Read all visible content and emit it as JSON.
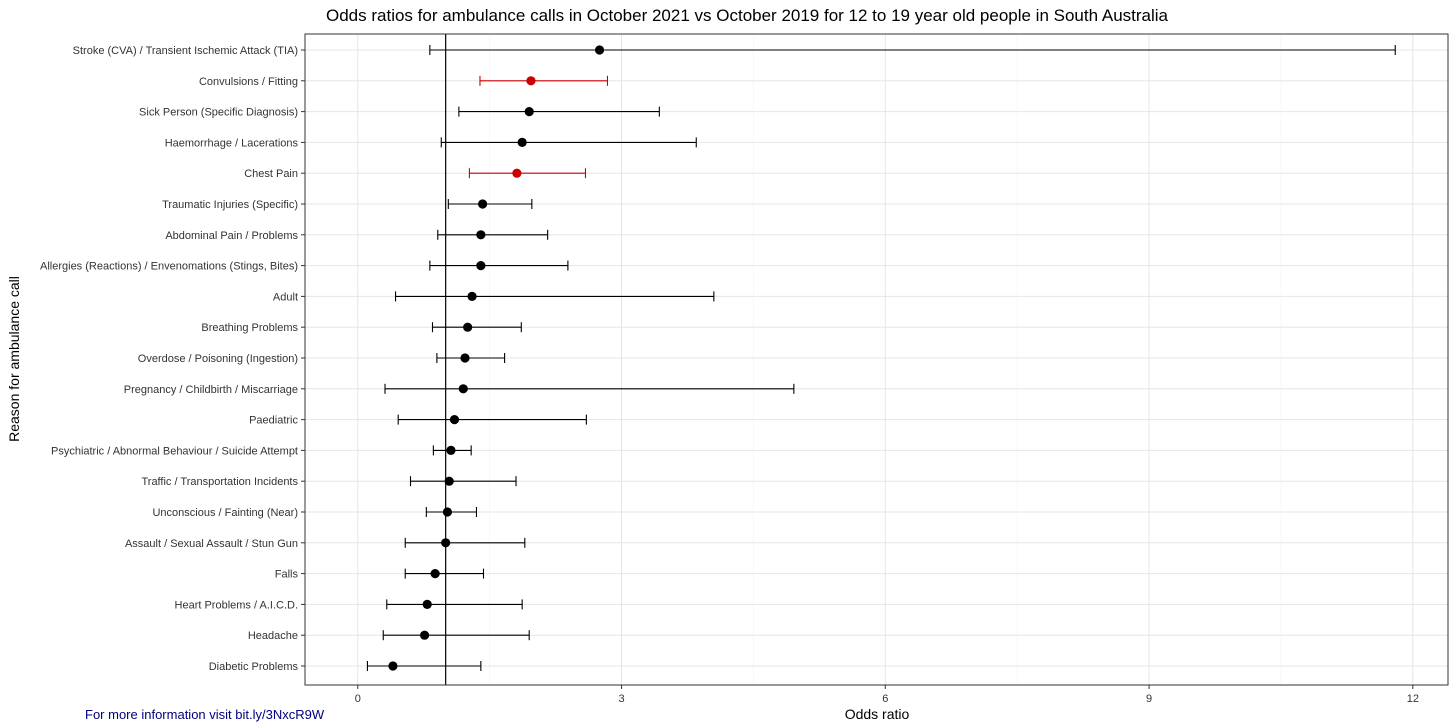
{
  "chart_data": {
    "type": "scatter",
    "title": "Odds ratios for ambulance calls in October 2021 vs October 2019 for 12 to 19 year old people in South Australia",
    "xlabel": "Odds ratio",
    "ylabel": "Reason for ambulance call",
    "xlim": [
      -0.6,
      12.4
    ],
    "x_ticks": [
      0,
      3,
      6,
      9,
      12
    ],
    "x_tick_labels": [
      "0",
      "3",
      "6",
      "9",
      "12"
    ],
    "reference_line_x": 1,
    "grid": true,
    "legend": "none",
    "colors": {
      "normal": "#000000",
      "highlight": "#cc0000"
    },
    "points": [
      {
        "label": "Stroke (CVA) / Transient Ischemic Attack (TIA)",
        "or": 2.75,
        "lower": 0.82,
        "upper": 11.8,
        "highlight": false
      },
      {
        "label": "Convulsions / Fitting",
        "or": 1.97,
        "lower": 1.39,
        "upper": 2.84,
        "highlight": true
      },
      {
        "label": "Sick Person (Specific Diagnosis)",
        "or": 1.95,
        "lower": 1.15,
        "upper": 3.43,
        "highlight": false
      },
      {
        "label": "Haemorrhage / Lacerations",
        "or": 1.87,
        "lower": 0.95,
        "upper": 3.85,
        "highlight": false
      },
      {
        "label": "Chest Pain",
        "or": 1.81,
        "lower": 1.27,
        "upper": 2.59,
        "highlight": true
      },
      {
        "label": "Traumatic Injuries (Specific)",
        "or": 1.42,
        "lower": 1.03,
        "upper": 1.98,
        "highlight": false
      },
      {
        "label": "Abdominal Pain / Problems",
        "or": 1.4,
        "lower": 0.91,
        "upper": 2.16,
        "highlight": false
      },
      {
        "label": "Allergies (Reactions) / Envenomations (Stings, Bites)",
        "or": 1.4,
        "lower": 0.82,
        "upper": 2.39,
        "highlight": false
      },
      {
        "label": "Adult",
        "or": 1.3,
        "lower": 0.43,
        "upper": 4.05,
        "highlight": false
      },
      {
        "label": "Breathing Problems",
        "or": 1.25,
        "lower": 0.85,
        "upper": 1.86,
        "highlight": false
      },
      {
        "label": "Overdose / Poisoning (Ingestion)",
        "or": 1.22,
        "lower": 0.9,
        "upper": 1.67,
        "highlight": false
      },
      {
        "label": "Pregnancy / Childbirth / Miscarriage",
        "or": 1.2,
        "lower": 0.31,
        "upper": 4.96,
        "highlight": false
      },
      {
        "label": "Paediatric",
        "or": 1.1,
        "lower": 0.46,
        "upper": 2.6,
        "highlight": false
      },
      {
        "label": "Psychiatric / Abnormal Behaviour / Suicide Attempt",
        "or": 1.06,
        "lower": 0.86,
        "upper": 1.29,
        "highlight": false
      },
      {
        "label": "Traffic / Transportation Incidents",
        "or": 1.04,
        "lower": 0.6,
        "upper": 1.8,
        "highlight": false
      },
      {
        "label": "Unconscious / Fainting (Near)",
        "or": 1.02,
        "lower": 0.78,
        "upper": 1.35,
        "highlight": false
      },
      {
        "label": "Assault / Sexual Assault / Stun Gun",
        "or": 1.0,
        "lower": 0.54,
        "upper": 1.9,
        "highlight": false
      },
      {
        "label": "Falls",
        "or": 0.88,
        "lower": 0.54,
        "upper": 1.43,
        "highlight": false
      },
      {
        "label": "Heart Problems / A.I.C.D.",
        "or": 0.79,
        "lower": 0.33,
        "upper": 1.87,
        "highlight": false
      },
      {
        "label": "Headache",
        "or": 0.76,
        "lower": 0.29,
        "upper": 1.95,
        "highlight": false
      },
      {
        "label": "Diabetic Problems",
        "or": 0.4,
        "lower": 0.11,
        "upper": 1.4,
        "highlight": false
      }
    ]
  },
  "footer": {
    "note": "For more information visit bit.ly/3NxcR9W"
  }
}
